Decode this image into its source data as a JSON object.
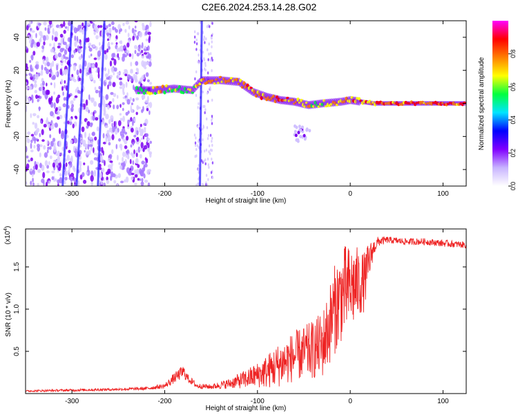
{
  "title": "C2E6.2024.253.14.28.G02",
  "chart_data": [
    {
      "type": "heatmap",
      "xlabel": "Height of straight line (km)",
      "ylabel": "Frequency (Hz)",
      "xlim": [
        -350,
        125
      ],
      "ylim": [
        -50,
        50
      ],
      "xticks": [
        -300,
        -200,
        -100,
        0,
        100
      ],
      "yticks": [
        -40,
        -20,
        0,
        20,
        40
      ],
      "colorbar": {
        "label": "Normalized spectral amplitude",
        "range": [
          0,
          1
        ],
        "ticks": [
          "0.0",
          "0.2",
          "0.4",
          "0.6",
          "0.8"
        ],
        "colormap": [
          "#ffffff",
          "#c8b4ff",
          "#8000ff",
          "#0000ff",
          "#00e5ff",
          "#00ff40",
          "#ffff00",
          "#ff8000",
          "#ff0000",
          "#ff00ff"
        ]
      },
      "ridge": [
        {
          "x": -230,
          "f": 8,
          "amp": 0.55
        },
        {
          "x": -210,
          "f": 8,
          "amp": 0.7
        },
        {
          "x": -190,
          "f": 9,
          "amp": 0.6
        },
        {
          "x": -170,
          "f": 8,
          "amp": 0.55
        },
        {
          "x": -160,
          "f": 14,
          "amp": 0.75
        },
        {
          "x": -140,
          "f": 14,
          "amp": 0.7
        },
        {
          "x": -120,
          "f": 13,
          "amp": 0.75
        },
        {
          "x": -105,
          "f": 7,
          "amp": 0.8
        },
        {
          "x": -90,
          "f": 4,
          "amp": 0.8
        },
        {
          "x": -75,
          "f": 2,
          "amp": 0.8
        },
        {
          "x": -60,
          "f": 1,
          "amp": 0.75
        },
        {
          "x": -45,
          "f": -1,
          "amp": 0.7
        },
        {
          "x": -30,
          "f": 0,
          "amp": 0.65
        },
        {
          "x": -10,
          "f": 1,
          "amp": 0.7
        },
        {
          "x": 0,
          "f": 2,
          "amp": 0.75
        },
        {
          "x": 25,
          "f": 0,
          "amp": 0.8
        },
        {
          "x": 60,
          "f": 0,
          "amp": 0.85
        },
        {
          "x": 100,
          "f": 0,
          "amp": 0.85
        },
        {
          "x": 125,
          "f": 0,
          "amp": 0.85
        }
      ],
      "noise_region_x": [
        -350,
        -215
      ],
      "streaks": [
        {
          "x_top": -300,
          "x_bottom": -310,
          "f_top": 50,
          "f_bottom": -50
        },
        {
          "x_top": -285,
          "x_bottom": -295,
          "f_top": 50,
          "f_bottom": -50
        },
        {
          "x_top": -265,
          "x_bottom": -272,
          "f_top": 50,
          "f_bottom": -50
        },
        {
          "x_top": -160,
          "x_bottom": -162,
          "f_top": 50,
          "f_bottom": -50
        }
      ]
    },
    {
      "type": "line",
      "xlabel": "Height of straight line (km)",
      "ylabel": "SNR (10 * v/v)",
      "y_multiplier": "(x10",
      "y_multiplier_exp": "4",
      "y_multiplier_close": ")",
      "xlim": [
        -350,
        125
      ],
      "ylim": [
        0,
        1.95
      ],
      "xticks": [
        -300,
        -200,
        -100,
        0,
        100
      ],
      "yticks": [
        0.5,
        1.0,
        1.5
      ],
      "ytick_labels": [
        "0.5",
        "1.0",
        "1.5"
      ],
      "series": [
        {
          "color": "#ee2222",
          "x": [
            -350,
            -300,
            -250,
            -220,
            -200,
            -190,
            -180,
            -175,
            -165,
            -150,
            -130,
            -110,
            -100,
            -90,
            -80,
            -70,
            -60,
            -50,
            -40,
            -30,
            -25,
            -20,
            -15,
            -10,
            -5,
            0,
            5,
            10,
            15,
            20,
            25,
            30,
            40,
            60,
            80,
            100,
            125
          ],
          "y": [
            0.03,
            0.04,
            0.05,
            0.06,
            0.09,
            0.18,
            0.26,
            0.18,
            0.09,
            0.08,
            0.12,
            0.18,
            0.22,
            0.26,
            0.32,
            0.38,
            0.44,
            0.48,
            0.52,
            0.58,
            0.72,
            0.9,
            1.05,
            1.15,
            1.22,
            1.25,
            1.28,
            1.3,
            1.32,
            1.55,
            1.72,
            1.8,
            1.82,
            1.8,
            1.8,
            1.78,
            1.76
          ],
          "noise": [
            0.01,
            0.015,
            0.015,
            0.02,
            0.03,
            0.06,
            0.08,
            0.05,
            0.03,
            0.03,
            0.06,
            0.12,
            0.15,
            0.2,
            0.25,
            0.28,
            0.3,
            0.32,
            0.35,
            0.4,
            0.45,
            0.5,
            0.55,
            0.55,
            0.55,
            0.5,
            0.5,
            0.4,
            0.35,
            0.25,
            0.1,
            0.06,
            0.04,
            0.04,
            0.04,
            0.04,
            0.04
          ]
        }
      ]
    }
  ]
}
